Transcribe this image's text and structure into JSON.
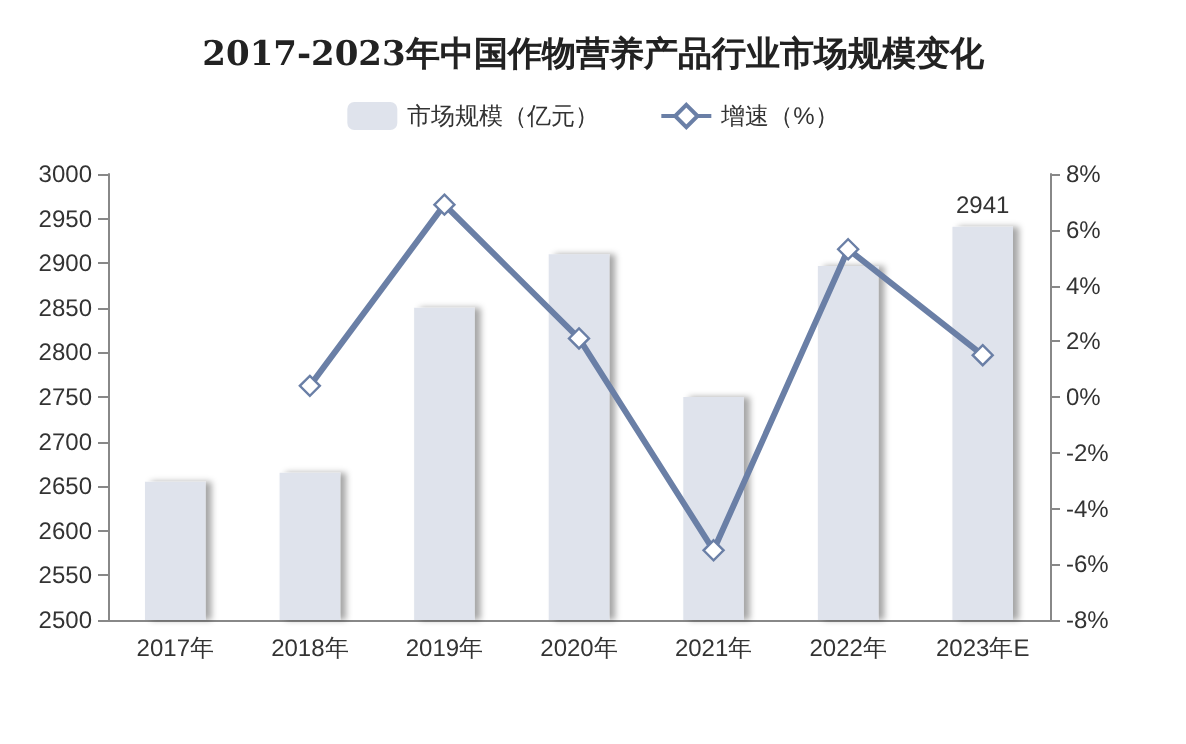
{
  "chart_data": {
    "type": "bar",
    "title": "2017-2023年中国作物营养产品行业市场规模变化",
    "categories": [
      "2017年",
      "2018年",
      "2019年",
      "2020年",
      "2021年",
      "2022年",
      "2023年E"
    ],
    "series": [
      {
        "name": "市场规模（亿元）",
        "color": "#dfe3ec",
        "values": [
          2655,
          2665,
          2850,
          2910,
          2750,
          2897,
          2941
        ],
        "value_labels": [
          null,
          null,
          null,
          null,
          null,
          null,
          "2941"
        ]
      },
      {
        "name": "增速（%）",
        "type": "line",
        "axis": "y2",
        "color": "#6a7fa6",
        "marker": "diamond",
        "values": [
          null,
          0.4,
          6.9,
          2.1,
          -5.5,
          5.3,
          1.5
        ]
      }
    ],
    "ylim": [
      2500,
      3000
    ],
    "yticks": [
      2500,
      2550,
      2600,
      2650,
      2700,
      2750,
      2800,
      2850,
      2900,
      2950,
      3000
    ],
    "y2lim": [
      -8,
      8
    ],
    "y2ticks": [
      {
        "value": -8,
        "label": "-8%"
      },
      {
        "value": -6,
        "label": "-6%"
      },
      {
        "value": -4,
        "label": "-4%"
      },
      {
        "value": -2,
        "label": "-2%"
      },
      {
        "value": 0,
        "label": "0%"
      },
      {
        "value": 2,
        "label": "2%"
      },
      {
        "value": 4,
        "label": "4%"
      },
      {
        "value": 6,
        "label": "6%"
      },
      {
        "value": 8,
        "label": "8%"
      }
    ],
    "grid": false,
    "legend": "top"
  }
}
